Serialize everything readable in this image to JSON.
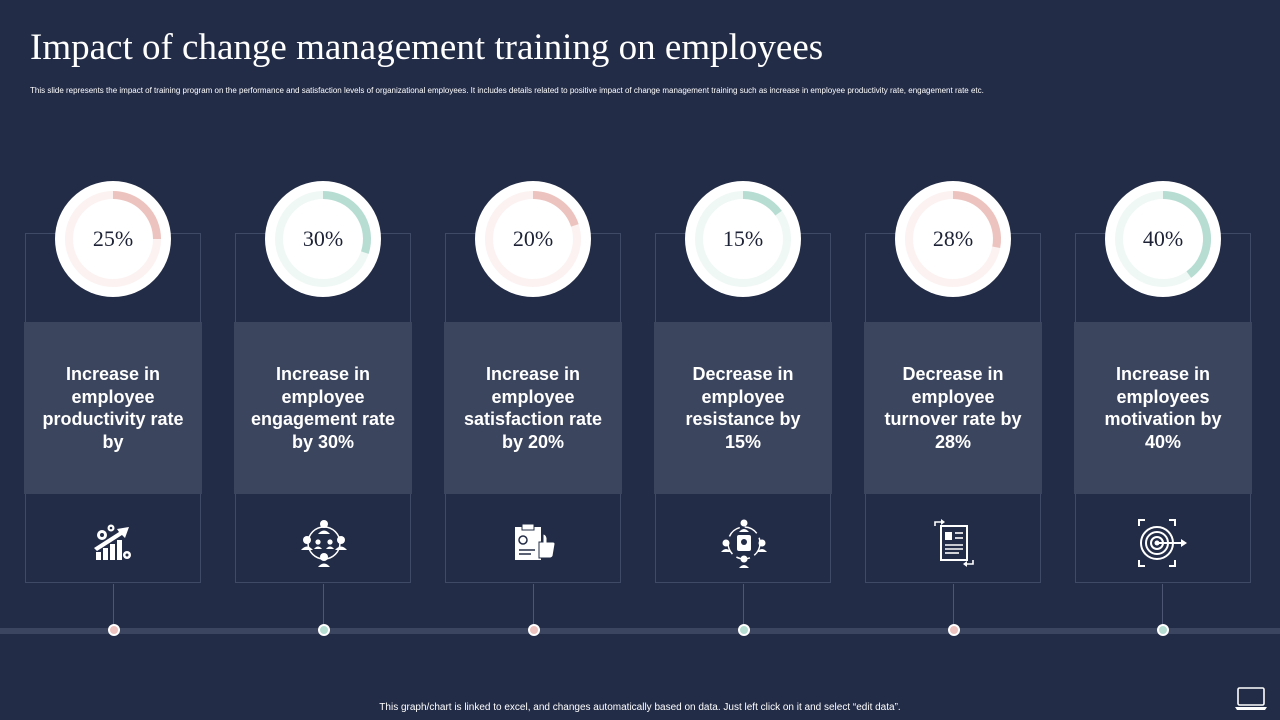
{
  "title": "Impact of change management training on employees",
  "subtitle": "This slide represents the impact of training program on the performance and satisfaction levels of organizational employees. It includes details related to positive impact of change management training such as increase in employee productivity rate, engagement rate etc.",
  "footer": "This graph/chart is linked to excel, and changes automatically based on data. Just left click on it and select “edit data”.",
  "colors": {
    "background": "#232c47",
    "pink": "#ecc3bf",
    "teal": "#b7ddd3",
    "card": "#3c455e"
  },
  "chart_data": {
    "type": "donut",
    "categories": [
      "Productivity",
      "Engagement",
      "Satisfaction",
      "Resistance",
      "Turnover rate",
      "Motivation"
    ],
    "values": [
      25,
      30,
      20,
      15,
      28,
      40
    ],
    "labels": [
      "25%",
      "30%",
      "20%",
      "15%",
      "28%",
      "40%"
    ],
    "series_colors": [
      "#ecc3bf",
      "#b7ddd3",
      "#ecc3bf",
      "#b7ddd3",
      "#ecc3bf",
      "#b7ddd3"
    ],
    "max": 100
  },
  "cards": [
    {
      "text": "Increase in employee productivity rate by",
      "icon": "growth-chart-gears-icon"
    },
    {
      "text": "Increase in employee engagement rate by 30%",
      "icon": "team-network-icon"
    },
    {
      "text": "Increase in employee satisfaction rate by 20%",
      "icon": "clipboard-thumbs-up-icon"
    },
    {
      "text": "Decrease in employee resistance by 15%",
      "icon": "people-cycle-icon"
    },
    {
      "text": "Decrease in employee turnover rate by 28%",
      "icon": "resume-exchange-icon"
    },
    {
      "text": "Increase in employees motivation by 40%",
      "icon": "target-arrow-icon"
    }
  ]
}
